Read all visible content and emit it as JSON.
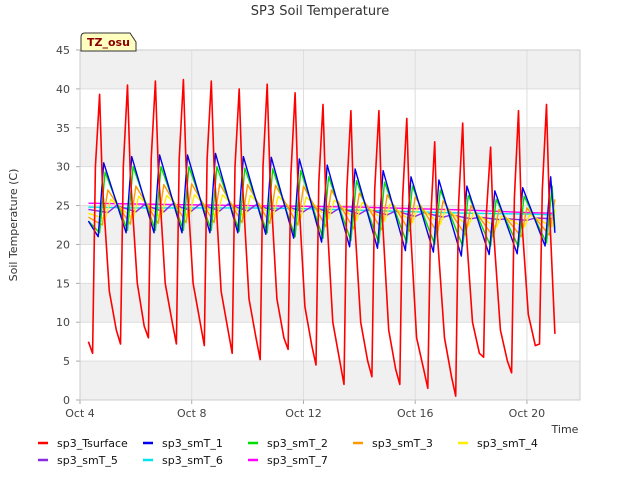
{
  "chart_data": {
    "type": "line",
    "title": "SP3 Soil Temperature",
    "xlabel": "Time",
    "ylabel": "Soil Temperature (C)",
    "badge": "TZ_osu",
    "xlim": [
      4,
      21.9
    ],
    "ylim": [
      0,
      45
    ],
    "xticks": [
      {
        "value": 4,
        "label": "Oct 4"
      },
      {
        "value": 8,
        "label": "Oct 8"
      },
      {
        "value": 12,
        "label": "Oct 12"
      },
      {
        "value": 16,
        "label": "Oct 16"
      },
      {
        "value": 20,
        "label": "Oct 20"
      }
    ],
    "yticks": [
      0,
      5,
      10,
      15,
      20,
      25,
      30,
      35,
      40,
      45
    ],
    "series": [
      {
        "name": "sp3_Tsurface",
        "color": "#ff0000",
        "x": [
          4.3,
          4.45,
          4.55,
          4.7,
          4.8,
          5.05,
          5.3,
          5.45,
          5.55,
          5.7,
          5.8,
          6.05,
          6.3,
          6.45,
          6.55,
          6.7,
          6.8,
          7.05,
          7.3,
          7.45,
          7.55,
          7.7,
          7.8,
          8.05,
          8.3,
          8.45,
          8.55,
          8.7,
          8.8,
          9.05,
          9.3,
          9.45,
          9.55,
          9.7,
          9.8,
          10.05,
          10.3,
          10.45,
          10.55,
          10.7,
          10.8,
          11.05,
          11.3,
          11.45,
          11.55,
          11.7,
          11.8,
          12.05,
          12.3,
          12.45,
          12.55,
          12.7,
          12.8,
          13.05,
          13.3,
          13.45,
          13.55,
          13.7,
          13.8,
          14.05,
          14.3,
          14.45,
          14.55,
          14.7,
          14.8,
          15.05,
          15.3,
          15.45,
          15.55,
          15.7,
          15.8,
          16.05,
          16.3,
          16.45,
          16.55,
          16.7,
          16.8,
          17.05,
          17.3,
          17.45,
          17.55,
          17.7,
          17.8,
          18.05,
          18.3,
          18.45,
          18.55,
          18.7,
          18.8,
          19.05,
          19.3,
          19.45,
          19.55,
          19.7,
          19.8,
          20.05,
          20.3,
          20.45,
          20.55,
          20.7,
          20.8,
          21.0
        ],
        "values": [
          7.5,
          6.0,
          30,
          39.3,
          28,
          14,
          9,
          7.2,
          30,
          40.5,
          29,
          15,
          9.5,
          8.0,
          31,
          41.0,
          30,
          15,
          10,
          7.2,
          31,
          41.2,
          30,
          15,
          10,
          7.0,
          31,
          41.0,
          30,
          14,
          9,
          6.0,
          30,
          40.0,
          29,
          13,
          8,
          5.2,
          30,
          40.6,
          29,
          13,
          8,
          6.5,
          29,
          39.5,
          28,
          12,
          7,
          4.5,
          28,
          38.0,
          26,
          10,
          5,
          2.0,
          27,
          37.2,
          25,
          10,
          5,
          3.0,
          27,
          37.2,
          25,
          9,
          4,
          2.0,
          26,
          36.2,
          24,
          8,
          4,
          1.5,
          23,
          33.2,
          21,
          8,
          3,
          0.5,
          25,
          35.6,
          23,
          10,
          6,
          5.5,
          24,
          32.5,
          22,
          9,
          5,
          3.5,
          26,
          37.2,
          24,
          11,
          7,
          7.2,
          27,
          38.0,
          25,
          8.5
        ]
      },
      {
        "name": "sp3_smT_1",
        "color": "#0000ee",
        "x": [
          4.3,
          4.65,
          4.85,
          5.65,
          5.85,
          6.65,
          6.85,
          7.65,
          7.85,
          8.65,
          8.85,
          9.65,
          9.85,
          10.65,
          10.85,
          11.65,
          11.85,
          12.65,
          12.85,
          13.65,
          13.85,
          14.65,
          14.85,
          15.65,
          15.85,
          16.65,
          16.85,
          17.65,
          17.85,
          18.65,
          18.85,
          19.65,
          19.85,
          20.65,
          20.85,
          21.0
        ],
        "values": [
          23.0,
          21.0,
          30.5,
          21.5,
          31.3,
          21.5,
          31.5,
          21.5,
          31.5,
          21.5,
          31.7,
          21.5,
          31.3,
          21.3,
          31.2,
          20.8,
          31.0,
          20.3,
          30.2,
          19.7,
          29.7,
          19.5,
          29.5,
          19.2,
          28.7,
          19.0,
          28.3,
          18.5,
          27.5,
          18.7,
          26.9,
          18.8,
          27.3,
          19.8,
          28.7,
          21.5
        ]
      },
      {
        "name": "sp3_smT_2",
        "color": "#00dd00",
        "x": [
          4.3,
          4.7,
          4.9,
          5.7,
          5.9,
          6.7,
          6.9,
          7.7,
          7.9,
          8.7,
          8.9,
          9.7,
          9.9,
          10.7,
          10.9,
          11.7,
          11.9,
          12.7,
          12.9,
          13.7,
          13.9,
          14.7,
          14.9,
          15.7,
          15.9,
          16.7,
          16.9,
          17.7,
          17.9,
          18.7,
          18.9,
          19.7,
          19.9,
          20.7,
          20.9,
          21.0
        ],
        "values": [
          23.0,
          21.5,
          29.3,
          21.8,
          30.0,
          21.8,
          30.0,
          21.8,
          30.0,
          21.8,
          30.0,
          21.7,
          29.8,
          21.5,
          29.7,
          21.0,
          29.5,
          20.8,
          28.7,
          20.5,
          28.2,
          20.2,
          28.0,
          20.2,
          27.5,
          20.0,
          27.0,
          19.8,
          26.3,
          19.8,
          25.8,
          19.7,
          26.2,
          20.2,
          27.5,
          22.0
        ]
      },
      {
        "name": "sp3_smT_3",
        "color": "#ff9900",
        "x": [
          4.3,
          4.8,
          5.0,
          5.8,
          6.0,
          6.8,
          7.0,
          7.8,
          8.0,
          8.8,
          9.0,
          9.8,
          10.0,
          10.8,
          11.0,
          11.8,
          12.0,
          12.8,
          13.0,
          13.8,
          14.0,
          14.8,
          15.0,
          15.8,
          16.0,
          16.8,
          17.0,
          17.8,
          18.0,
          18.8,
          19.0,
          19.8,
          20.0,
          20.8,
          21.0
        ],
        "values": [
          23.5,
          22.5,
          27.0,
          22.6,
          27.5,
          22.7,
          27.7,
          22.8,
          27.8,
          22.8,
          27.8,
          22.8,
          27.7,
          22.7,
          27.6,
          22.5,
          27.5,
          22.3,
          27.0,
          22.0,
          26.6,
          21.9,
          26.4,
          21.7,
          26.1,
          21.5,
          25.6,
          21.2,
          25.0,
          21.0,
          24.5,
          21.0,
          24.7,
          21.2,
          25.8
        ]
      },
      {
        "name": "sp3_smT_4",
        "color": "#ffee00",
        "x": [
          4.3,
          4.9,
          5.1,
          5.9,
          6.1,
          6.9,
          7.1,
          7.9,
          8.1,
          8.9,
          9.1,
          9.9,
          10.1,
          10.9,
          11.1,
          11.9,
          12.1,
          12.9,
          13.1,
          13.9,
          14.1,
          14.9,
          15.1,
          15.9,
          16.1,
          16.9,
          17.1,
          17.9,
          18.1,
          18.9,
          19.1,
          19.9,
          20.1,
          20.9,
          21.0
        ],
        "values": [
          24.0,
          23.3,
          25.8,
          23.3,
          26.2,
          23.4,
          26.3,
          23.5,
          26.4,
          23.5,
          26.4,
          23.5,
          26.3,
          23.5,
          26.2,
          23.4,
          26.1,
          23.3,
          25.7,
          23.1,
          25.4,
          23.0,
          25.2,
          22.8,
          25.0,
          22.6,
          24.6,
          22.4,
          24.1,
          22.2,
          23.7,
          22.2,
          23.8,
          22.3,
          24.5
        ]
      },
      {
        "name": "sp3_smT_5",
        "color": "#8a2be2",
        "x": [
          4.3,
          5.0,
          5.3,
          6.0,
          6.3,
          7.0,
          7.3,
          8.0,
          8.3,
          9.0,
          9.3,
          10.0,
          10.3,
          11.0,
          11.3,
          12.0,
          12.3,
          13.0,
          13.3,
          14.0,
          14.3,
          15.0,
          15.3,
          16.0,
          16.3,
          17.0,
          17.3,
          18.0,
          18.3,
          19.0,
          19.3,
          20.0,
          20.3,
          21.0
        ],
        "values": [
          24.5,
          24.1,
          25.0,
          24.2,
          25.1,
          24.2,
          25.2,
          24.3,
          25.2,
          24.3,
          25.2,
          24.3,
          25.1,
          24.3,
          25.0,
          24.2,
          24.9,
          24.0,
          24.7,
          23.9,
          24.5,
          23.8,
          24.3,
          23.6,
          24.1,
          23.5,
          23.8,
          23.3,
          23.5,
          23.2,
          23.3,
          23.1,
          23.4,
          23.3
        ]
      },
      {
        "name": "sp3_smT_6",
        "color": "#00e5ee",
        "x": [
          4.3,
          6,
          8,
          10,
          12,
          14,
          16,
          18,
          20,
          21.0
        ],
        "values": [
          24.8,
          24.7,
          24.7,
          24.7,
          24.6,
          24.4,
          24.2,
          24.0,
          23.9,
          23.8
        ]
      },
      {
        "name": "sp3_smT_7",
        "color": "#ff00ff",
        "x": [
          4.3,
          6,
          8,
          10,
          12,
          14,
          16,
          18,
          20,
          21.0
        ],
        "values": [
          25.3,
          25.2,
          25.1,
          25.0,
          24.9,
          24.8,
          24.6,
          24.4,
          24.1,
          24.0
        ]
      }
    ]
  }
}
